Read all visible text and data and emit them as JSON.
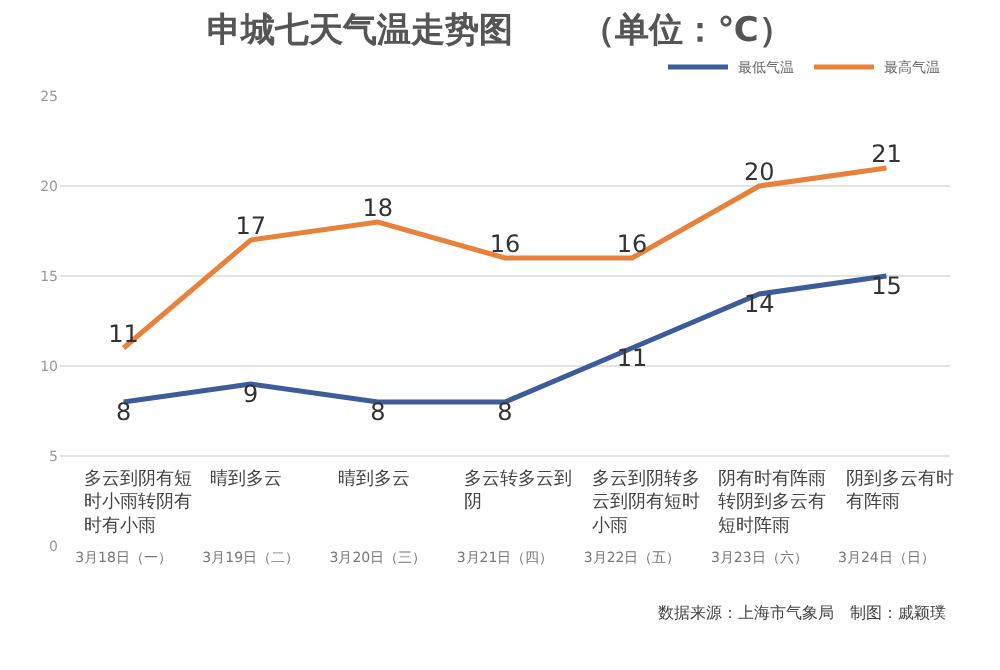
{
  "chart_data": {
    "type": "line",
    "title": "申城七天气温走势图　　（单位：℃）",
    "categories": [
      "3月18日（一）",
      "3月19日（二）",
      "3月20日（三）",
      "3月21日（四）",
      "3月22日（五）",
      "3月23日（六）",
      "3月24日（日）"
    ],
    "series": [
      {
        "name": "最低气温",
        "color": "#3d5c9a",
        "values": [
          8,
          9,
          8,
          8,
          11,
          14,
          15
        ]
      },
      {
        "name": "最高气温",
        "color": "#e8823a",
        "values": [
          11,
          17,
          18,
          16,
          16,
          20,
          21
        ]
      }
    ],
    "ylim": [
      0,
      25
    ],
    "yticks": [
      0,
      5,
      10,
      15,
      20,
      25
    ],
    "grid": "y",
    "legend": "top right",
    "data_labels": true,
    "marker": "none",
    "line_style": "solid",
    "annotations": [
      "多云到阴有短时小雨转阴有时有小雨",
      "晴到多云",
      "晴到多云",
      "多云转多云到阴",
      "多云到阴转多云到阴有短时小雨",
      "阴有时有阵雨转阴到多云有短时阵雨",
      "阴到多云有时有阵雨",
      "数据来源：上海市气象局　制图：戚颖璞"
    ]
  }
}
